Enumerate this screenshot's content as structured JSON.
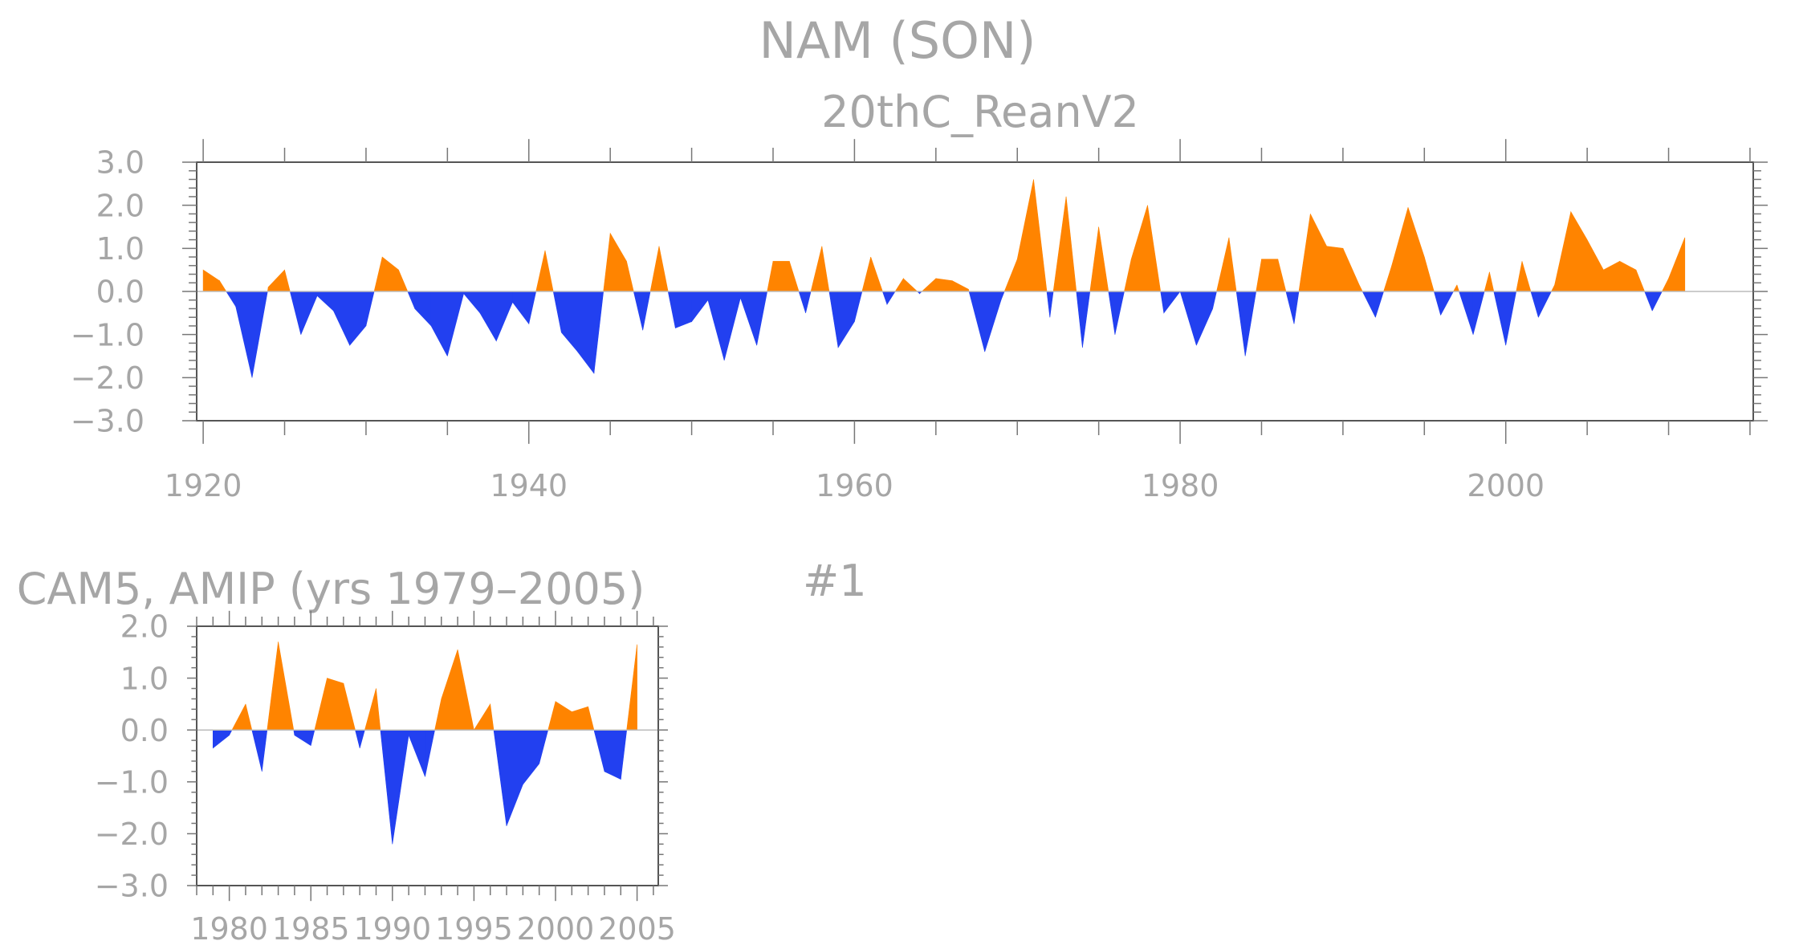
{
  "figure": {
    "title": "NAM (SON)",
    "label": "#1"
  },
  "colors": {
    "positive": "#ff8400",
    "negative": "#2240f0",
    "text": "#a6a6a6",
    "frame": "#555555"
  },
  "chart_data": [
    {
      "type": "area",
      "title": "20thC_ReanV2",
      "xlabel": "",
      "ylabel": "",
      "xlim": [
        1920,
        2012
      ],
      "ylim": [
        -3.0,
        3.0
      ],
      "yticks": [
        3.0,
        2.0,
        1.0,
        0.0,
        -1.0,
        -2.0,
        -3.0
      ],
      "ytick_labels": [
        "3.0",
        "2.0",
        "1.0",
        "0.0",
        "−1.0",
        "−2.0",
        "−3.0"
      ],
      "xticks": [
        1920,
        1940,
        1960,
        1980,
        2000
      ],
      "xtick_labels": [
        "1920",
        "1940",
        "1960",
        "1980",
        "2000"
      ],
      "x": [
        1920,
        1921,
        1922,
        1923,
        1924,
        1925,
        1926,
        1927,
        1928,
        1929,
        1930,
        1931,
        1932,
        1933,
        1934,
        1935,
        1936,
        1937,
        1938,
        1939,
        1940,
        1941,
        1942,
        1943,
        1944,
        1945,
        1946,
        1947,
        1948,
        1949,
        1950,
        1951,
        1952,
        1953,
        1954,
        1955,
        1956,
        1957,
        1958,
        1959,
        1960,
        1961,
        1962,
        1963,
        1964,
        1965,
        1966,
        1967,
        1968,
        1969,
        1970,
        1971,
        1972,
        1973,
        1974,
        1975,
        1976,
        1977,
        1978,
        1979,
        1980,
        1981,
        1982,
        1983,
        1984,
        1985,
        1986,
        1987,
        1988,
        1989,
        1990,
        1991,
        1992,
        1993,
        1994,
        1995,
        1996,
        1997,
        1998,
        1999,
        2000,
        2001,
        2002,
        2003,
        2004,
        2005,
        2006,
        2007,
        2008,
        2009,
        2010,
        2011
      ],
      "values": [
        0.5,
        0.25,
        -0.35,
        -2.0,
        0.1,
        0.5,
        -1.0,
        -0.1,
        -0.45,
        -1.25,
        -0.8,
        0.8,
        0.5,
        -0.4,
        -0.8,
        -1.5,
        -0.05,
        -0.5,
        -1.15,
        -0.25,
        -0.75,
        0.95,
        -0.95,
        -1.4,
        -1.9,
        1.35,
        0.7,
        -0.9,
        1.05,
        -0.85,
        -0.7,
        -0.2,
        -1.6,
        -0.15,
        -1.25,
        0.7,
        0.7,
        -0.5,
        1.05,
        -1.3,
        -0.7,
        0.8,
        -0.3,
        0.3,
        -0.05,
        0.3,
        0.25,
        0.05,
        -1.4,
        -0.2,
        0.75,
        2.6,
        -0.6,
        2.2,
        -1.3,
        1.5,
        -1.0,
        0.75,
        2.0,
        -0.5,
        0.0,
        -1.25,
        -0.4,
        1.25,
        -1.5,
        0.75,
        0.75,
        -0.75,
        1.8,
        1.05,
        1.0,
        0.15,
        -0.6,
        0.6,
        1.95,
        0.8,
        -0.55,
        0.15,
        -1.0,
        0.45,
        -1.25,
        0.7,
        -0.6,
        0.15,
        1.85,
        1.2,
        0.5,
        0.7,
        0.5,
        -0.45,
        0.3,
        1.25
      ]
    },
    {
      "type": "area",
      "title": "CAM5, AMIP (yrs 1979–2005)",
      "xlabel": "",
      "ylabel": "",
      "xlim": [
        1979,
        2005
      ],
      "ylim": [
        -3.0,
        2.0
      ],
      "yticks": [
        2.0,
        1.0,
        0.0,
        -1.0,
        -2.0,
        -3.0
      ],
      "ytick_labels": [
        "2.0",
        "1.0",
        "0.0",
        "−1.0",
        "−2.0",
        "−3.0"
      ],
      "xticks": [
        1980,
        1985,
        1990,
        1995,
        2000,
        2005
      ],
      "xtick_labels": [
        "1980",
        "1985",
        "1990",
        "1995",
        "2000",
        "2005"
      ],
      "x": [
        1979,
        1980,
        1981,
        1982,
        1983,
        1984,
        1985,
        1986,
        1987,
        1988,
        1989,
        1990,
        1991,
        1992,
        1993,
        1994,
        1995,
        1996,
        1997,
        1998,
        1999,
        2000,
        2001,
        2002,
        2003,
        2004,
        2005
      ],
      "values": [
        -0.35,
        -0.1,
        0.5,
        -0.8,
        1.7,
        -0.1,
        -0.3,
        1.0,
        0.9,
        -0.35,
        0.8,
        -2.2,
        -0.1,
        -0.9,
        0.6,
        1.55,
        0.0,
        0.5,
        -1.85,
        -1.05,
        -0.65,
        0.55,
        0.35,
        0.45,
        -0.8,
        -0.95,
        1.65
      ]
    }
  ]
}
